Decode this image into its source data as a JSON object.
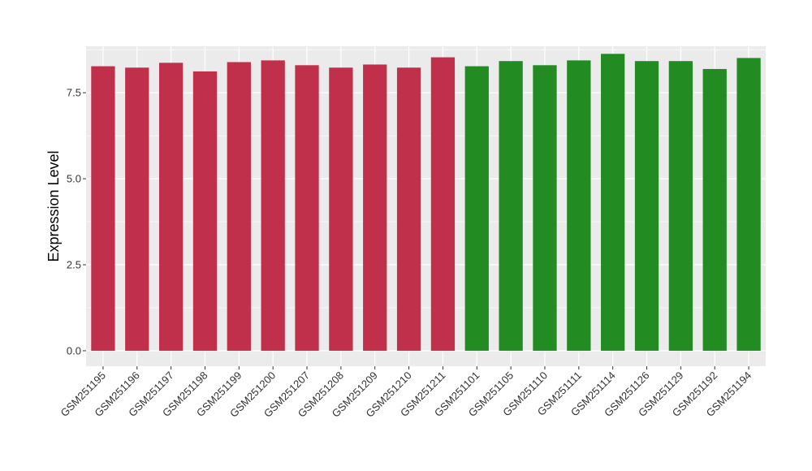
{
  "chart_data": {
    "type": "bar",
    "ylabel": "Expression Level",
    "xlabel": "",
    "ylim": [
      -0.45,
      8.85
    ],
    "yticks": [
      0.0,
      2.5,
      5.0,
      7.5
    ],
    "ytick_labels": [
      "0.0",
      "2.5",
      "5.0",
      "7.5"
    ],
    "grid": true,
    "legend": "none",
    "panel_background": "#EBEBEB",
    "group_colors": {
      "group1": "#C1304A",
      "group2": "#228B22"
    },
    "categories": [
      "GSM251195",
      "GSM251196",
      "GSM251197",
      "GSM251198",
      "GSM251199",
      "GSM251200",
      "GSM251207",
      "GSM251208",
      "GSM251209",
      "GSM251210",
      "GSM251211",
      "GSM251101",
      "GSM251105",
      "GSM251110",
      "GSM251111",
      "GSM251114",
      "GSM251126",
      "GSM251129",
      "GSM251192",
      "GSM251194"
    ],
    "values": [
      8.27,
      8.23,
      8.37,
      8.12,
      8.39,
      8.44,
      8.3,
      8.23,
      8.32,
      8.23,
      8.53,
      8.27,
      8.42,
      8.3,
      8.44,
      8.63,
      8.42,
      8.42,
      8.19,
      8.51
    ],
    "groups": [
      "group1",
      "group1",
      "group1",
      "group1",
      "group1",
      "group1",
      "group1",
      "group1",
      "group1",
      "group1",
      "group1",
      "group2",
      "group2",
      "group2",
      "group2",
      "group2",
      "group2",
      "group2",
      "group2",
      "group2"
    ]
  }
}
